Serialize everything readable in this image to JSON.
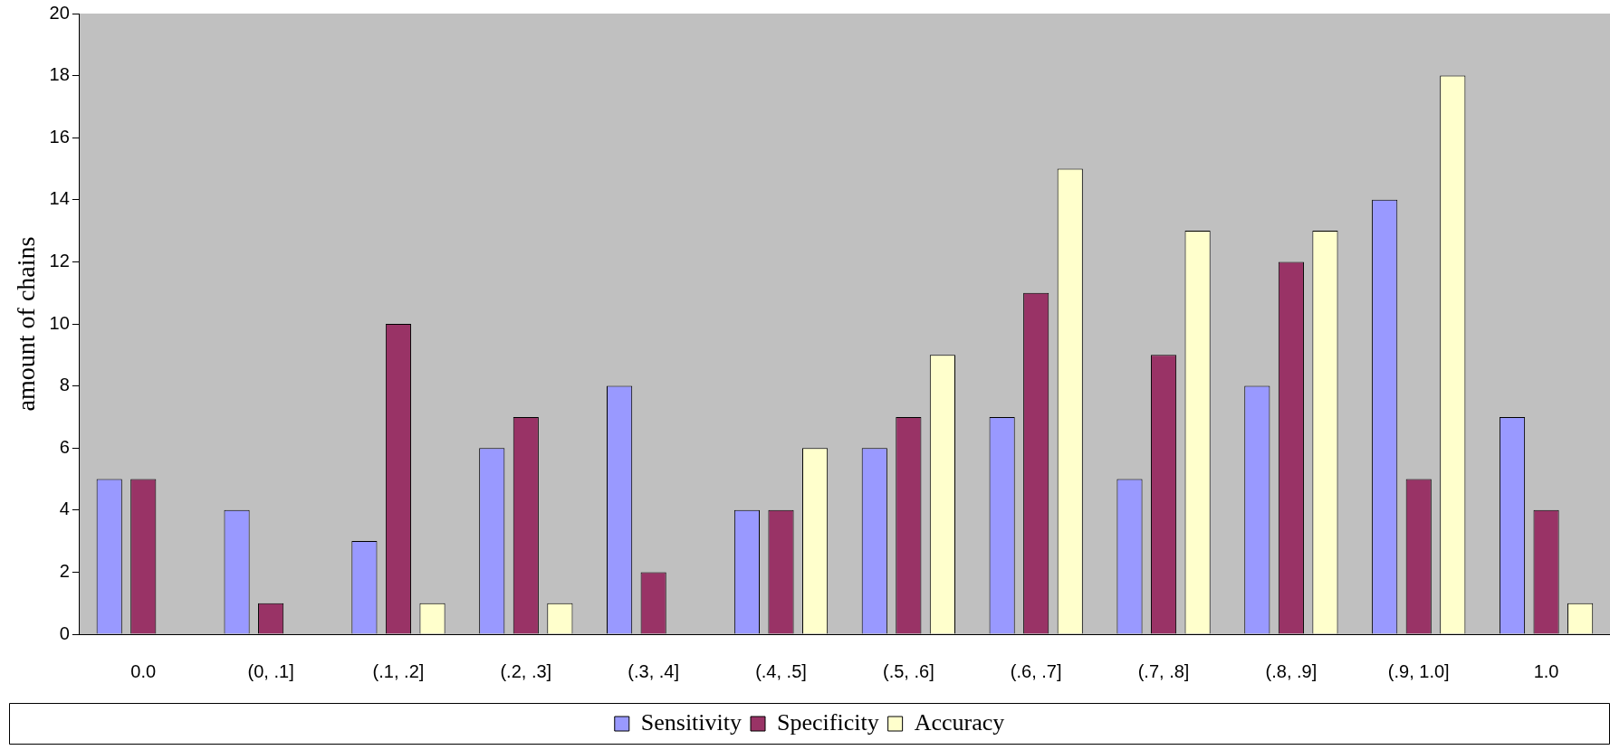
{
  "chart_data": {
    "type": "bar",
    "ylabel": "amount of chains",
    "categories": [
      "0.0",
      "(0, .1]",
      "(.1, .2]",
      "(.2, .3]",
      "(.3, .4]",
      "(.4, .5]",
      "(.5, .6]",
      "(.6, .7]",
      "(.7, .8]",
      "(.8, .9]",
      "(.9, 1.0]",
      "1.0"
    ],
    "series": [
      {
        "name": "Sensitivity",
        "color": "#9999ff",
        "values": [
          5,
          4,
          3,
          6,
          8,
          4,
          6,
          7,
          5,
          8,
          14,
          7
        ]
      },
      {
        "name": "Specificity",
        "color": "#993366",
        "values": [
          5,
          1,
          10,
          7,
          2,
          4,
          7,
          11,
          9,
          12,
          5,
          4
        ]
      },
      {
        "name": "Accuracy",
        "color": "#ffffcc",
        "values": [
          0,
          0,
          1,
          1,
          0,
          6,
          9,
          15,
          13,
          13,
          18,
          1
        ]
      }
    ],
    "ylim": [
      0,
      20
    ],
    "yticks": [
      0,
      2,
      4,
      6,
      8,
      10,
      12,
      14,
      16,
      18,
      20
    ],
    "grid": false,
    "legend": "bottom"
  }
}
